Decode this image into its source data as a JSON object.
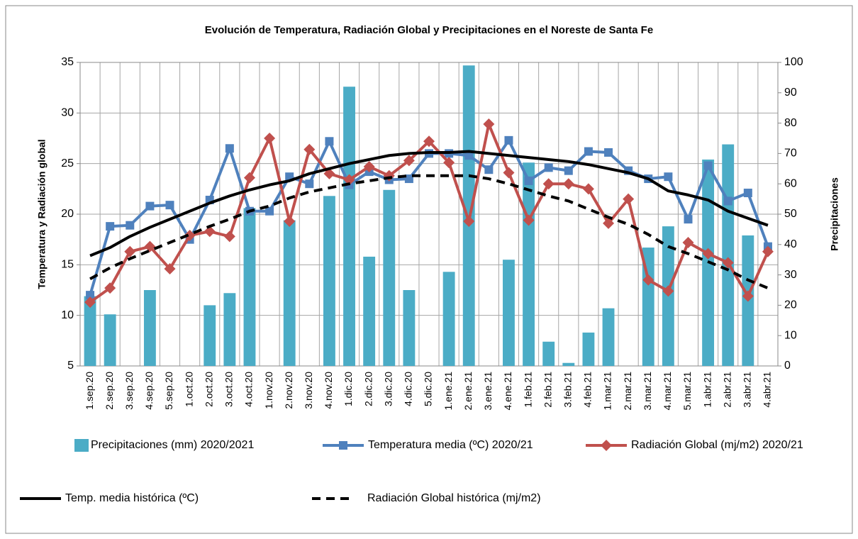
{
  "chart_data": {
    "type": "bar-line",
    "title": "Evolución de Temperatura, Radiación Global y Precipitaciones en el Noreste de Santa Fe",
    "y_label": "Temperatura y Radiación global",
    "y2_label": "Precipitaciones",
    "categories": [
      "1.sep.20",
      "2.sep.20",
      "3.sep.20",
      "4.sep.20",
      "5.sep.20",
      "1.oct.20",
      "2.oct.20",
      "3.oct.20",
      "4.oct.20",
      "1.nov.20",
      "2.nov.20",
      "3.nov.20",
      "4.nov.20",
      "1.dic.20",
      "2.dic.20",
      "3.dic.20",
      "4.dic.20",
      "5.dic.20",
      "1.ene.21",
      "2.ene.21",
      "3.ene.21",
      "4.ene.21",
      "1.feb.21",
      "2.feb.21",
      "3.feb.21",
      "4.feb.21",
      "1.mar.21",
      "2.mar.21",
      "3.mar.21",
      "4.mar.21",
      "5.mar.21",
      "1.abr.21",
      "2.abr.21",
      "3.abr.21",
      "4.abr.21"
    ],
    "ylim": [
      5,
      35
    ],
    "yticks": [
      5,
      10,
      15,
      20,
      25,
      30,
      35
    ],
    "y2lim": [
      0,
      100
    ],
    "y2ticks": [
      0,
      10,
      20,
      30,
      40,
      50,
      60,
      70,
      80,
      90,
      100
    ],
    "grid": true,
    "series": [
      {
        "name": "Precipitaciones (mm) 2020/2021",
        "type": "bar",
        "axis": "y2",
        "color": "#4bacc6",
        "values": [
          23,
          17,
          0,
          25,
          0,
          0,
          20,
          24,
          52,
          0,
          48,
          0,
          56,
          92,
          36,
          58,
          25,
          0,
          31,
          99,
          0,
          35,
          67,
          8,
          1,
          11,
          19,
          0,
          39,
          46,
          0,
          68,
          73,
          43,
          0
        ]
      },
      {
        "name": "Temperatura media (ºC) 2020/21",
        "type": "line",
        "marker": "square",
        "dash": false,
        "color": "#4f81bd",
        "values": [
          12,
          18.8,
          18.9,
          20.8,
          20.9,
          17.5,
          21.4,
          26.5,
          20.3,
          20.3,
          23.7,
          23,
          27.2,
          22.9,
          24.2,
          23.4,
          23.5,
          26,
          26,
          25.8,
          24.4,
          27.3,
          23.3,
          24.6,
          24.3,
          26.2,
          26.1,
          24.3,
          23.5,
          23.7,
          19.5,
          24.8,
          21.3,
          22.1,
          16.8
        ]
      },
      {
        "name": "Radiación Global (mj/m2) 2020/21",
        "type": "line",
        "marker": "diamond",
        "dash": false,
        "color": "#c0504d",
        "values": [
          11.3,
          12.7,
          16.3,
          16.8,
          14.6,
          17.9,
          18.3,
          17.8,
          23.6,
          27.5,
          19.3,
          26.4,
          24,
          23.4,
          24.7,
          23.8,
          25.3,
          27.2,
          25.1,
          19.3,
          28.9,
          24.1,
          19.4,
          23,
          23,
          22.5,
          19.1,
          21.5,
          13.5,
          12.4,
          17.2,
          16.1,
          15.2,
          11.9,
          16.3
        ]
      },
      {
        "name": "Temp. media histórica (ºC)",
        "type": "line",
        "marker": "none",
        "dash": false,
        "color": "#000000",
        "values": [
          15.9,
          16.7,
          17.8,
          18.7,
          19.5,
          20.3,
          21.1,
          21.8,
          22.4,
          22.9,
          23.3,
          24,
          24.5,
          25,
          25.4,
          25.8,
          26,
          26.1,
          26.1,
          26.2,
          26,
          25.8,
          25.6,
          25.4,
          25.2,
          24.9,
          24.5,
          24.1,
          23.5,
          22.3,
          21.9,
          21.4,
          20.3,
          19.6,
          18.9
        ]
      },
      {
        "name": "Radiación Global histórica (mj/m2)",
        "type": "line",
        "marker": "none",
        "dash": true,
        "color": "#000000",
        "values": [
          13.6,
          14.7,
          15.6,
          16.4,
          17.2,
          18,
          18.8,
          19.5,
          20.3,
          20.8,
          21.6,
          22.2,
          22.6,
          23,
          23.3,
          23.6,
          23.8,
          23.8,
          23.8,
          23.8,
          23.5,
          23,
          22.4,
          21.8,
          21.3,
          20.5,
          19.7,
          19,
          18,
          16.8,
          16.1,
          15.3,
          14.5,
          13.5,
          12.7
        ]
      }
    ]
  }
}
